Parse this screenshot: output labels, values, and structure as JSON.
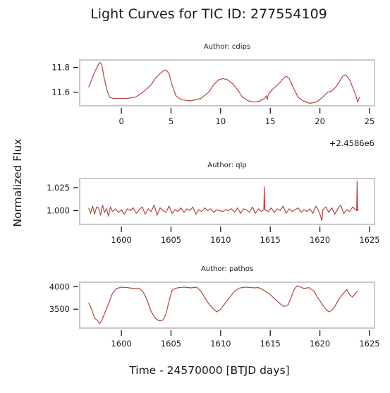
{
  "figure": {
    "title": "Light Curves for TIC ID: 277554109",
    "xlabel": "Time - 24570000 [BTJD days]",
    "ylabel": "Normalized Flux",
    "line_color": "#b5443f"
  },
  "chart_data": [
    {
      "type": "line",
      "title": "Author: cdips",
      "x_ticks": [
        0,
        5,
        10,
        15,
        20,
        25
      ],
      "x_offset_label": "+2.4586e6",
      "xlim": [
        -4.2,
        25.5
      ],
      "y_ticks": [
        11.6,
        11.8
      ],
      "ylim": [
        11.49,
        11.86
      ],
      "x": [
        -3.3,
        -3.0,
        -2.7,
        -2.4,
        -2.2,
        -2.0,
        -1.8,
        -1.5,
        -1.2,
        -0.8,
        -0.2,
        0.6,
        1.4,
        2.0,
        2.6,
        3.0,
        3.5,
        3.9,
        4.2,
        4.5,
        4.8,
        5.1,
        5.5,
        6.0,
        7.0,
        8.0,
        8.8,
        9.3,
        9.8,
        10.2,
        10.7,
        11.2,
        11.7,
        12.2,
        12.8,
        13.4,
        14.0,
        14.4,
        14.6,
        14.7,
        14.8,
        15.2,
        15.6,
        16.0,
        16.3,
        16.6,
        16.9,
        17.3,
        17.8,
        18.3,
        19.0,
        19.6,
        20.0,
        20.4,
        20.8,
        21.2,
        21.6,
        22.0,
        22.3,
        22.6,
        23.0,
        23.4,
        23.6,
        23.7,
        23.8,
        24.0
      ],
      "y": [
        11.64,
        11.7,
        11.76,
        11.81,
        11.84,
        11.83,
        11.74,
        11.63,
        11.56,
        11.55,
        11.55,
        11.55,
        11.56,
        11.59,
        11.63,
        11.66,
        11.72,
        11.75,
        11.77,
        11.78,
        11.75,
        11.66,
        11.57,
        11.54,
        11.53,
        11.55,
        11.6,
        11.66,
        11.7,
        11.71,
        11.7,
        11.67,
        11.62,
        11.56,
        11.53,
        11.52,
        11.53,
        11.55,
        11.57,
        11.54,
        11.58,
        11.62,
        11.65,
        11.68,
        11.71,
        11.73,
        11.71,
        11.64,
        11.56,
        11.53,
        11.51,
        11.52,
        11.54,
        11.57,
        11.6,
        11.61,
        11.64,
        11.69,
        11.73,
        11.74,
        11.7,
        11.62,
        11.58,
        11.55,
        11.52,
        11.56
      ]
    },
    {
      "type": "line",
      "title": "Author: qlp",
      "x_ticks": [
        1600,
        1605,
        1610,
        1615,
        1620,
        1625
      ],
      "xlim": [
        1595.8,
        1625.5
      ],
      "y_ticks": [
        1.0,
        1.025
      ],
      "y_tick_labels": [
        "1.000",
        "1.025"
      ],
      "ylim": [
        0.985,
        1.035
      ],
      "x": [
        1596.7,
        1596.9,
        1597.1,
        1597.3,
        1597.5,
        1597.7,
        1597.9,
        1598.1,
        1598.3,
        1598.5,
        1598.7,
        1598.9,
        1599.1,
        1599.4,
        1599.7,
        1600.0,
        1600.3,
        1600.6,
        1600.9,
        1601.2,
        1601.5,
        1601.8,
        1602.1,
        1602.4,
        1602.7,
        1603.0,
        1603.3,
        1603.6,
        1603.9,
        1604.2,
        1604.5,
        1604.8,
        1605.1,
        1605.4,
        1605.7,
        1606.0,
        1606.3,
        1606.6,
        1606.9,
        1607.2,
        1607.5,
        1607.8,
        1608.1,
        1608.4,
        1608.7,
        1609.0,
        1609.3,
        1609.6,
        1609.9,
        1610.2,
        1610.5,
        1610.8,
        1611.1,
        1611.4,
        1611.7,
        1612.0,
        1612.3,
        1612.6,
        1612.9,
        1613.2,
        1613.5,
        1613.8,
        1614.1,
        1614.35,
        1614.4,
        1614.45,
        1614.8,
        1615.1,
        1615.4,
        1615.7,
        1616.0,
        1616.3,
        1616.6,
        1616.9,
        1617.2,
        1617.5,
        1617.8,
        1618.1,
        1618.4,
        1618.7,
        1619.0,
        1619.3,
        1619.6,
        1619.9,
        1620.1,
        1620.2,
        1620.3,
        1620.6,
        1620.9,
        1621.2,
        1621.5,
        1621.8,
        1622.1,
        1622.4,
        1622.7,
        1623.0,
        1623.3,
        1623.6,
        1623.7,
        1623.75,
        1623.8,
        1623.9
      ],
      "y": [
        1.003,
        0.997,
        1.005,
        0.996,
        1.004,
        1.003,
        0.995,
        1.006,
        0.998,
        1.002,
        0.994,
        1.004,
        0.999,
        1.002,
        0.998,
        1.001,
        0.996,
        1.002,
        1.0,
        1.003,
        0.997,
        1.001,
        1.004,
        0.996,
        1.002,
        0.999,
        1.006,
        0.995,
        1.003,
        1.0,
        0.998,
        1.005,
        0.997,
        1.001,
        0.999,
        1.003,
        0.998,
        1.002,
        1.0,
        1.004,
        0.996,
        1.001,
        0.999,
        1.003,
        1.0,
        1.002,
        0.998,
        1.001,
        1.0,
        0.999,
        1.001,
        1.0,
        1.002,
        0.998,
        1.003,
        0.997,
        1.002,
        1.001,
        0.998,
        1.004,
        0.997,
        1.002,
        0.999,
        1.001,
        1.026,
        1.001,
        0.999,
        1.003,
        0.998,
        1.002,
        1.0,
        1.005,
        0.997,
        1.002,
        0.999,
        1.001,
        1.003,
        0.998,
        1.001,
        0.999,
        1.002,
        0.997,
        1.005,
        0.999,
        0.993,
        0.989,
        1.001,
        1.004,
        0.998,
        1.003,
        0.996,
        1.002,
        1.006,
        0.997,
        1.001,
        0.999,
        1.004,
        1.001,
        1.0,
        1.032,
        1.0,
        1.001
      ]
    },
    {
      "type": "line",
      "title": "Author: pathos",
      "x_ticks": [
        1600,
        1605,
        1610,
        1615,
        1620,
        1625
      ],
      "xlim": [
        1595.8,
        1625.5
      ],
      "y_ticks": [
        3500,
        4000
      ],
      "ylim": [
        3080,
        4100
      ],
      "x": [
        1596.7,
        1597.0,
        1597.3,
        1597.6,
        1597.8,
        1598.0,
        1598.3,
        1598.7,
        1599.1,
        1599.5,
        1600.0,
        1600.6,
        1601.2,
        1601.8,
        1602.2,
        1602.6,
        1603.0,
        1603.4,
        1603.8,
        1604.2,
        1604.5,
        1604.8,
        1605.1,
        1605.4,
        1605.8,
        1606.4,
        1607.0,
        1607.6,
        1608.0,
        1608.4,
        1608.8,
        1609.2,
        1609.6,
        1610.0,
        1610.4,
        1610.9,
        1611.4,
        1611.9,
        1612.4,
        1612.9,
        1613.4,
        1613.8,
        1614.2,
        1614.5,
        1614.7,
        1614.9,
        1615.2,
        1615.6,
        1616.0,
        1616.4,
        1616.8,
        1617.1,
        1617.4,
        1617.7,
        1618.0,
        1618.4,
        1618.9,
        1619.4,
        1619.8,
        1620.2,
        1620.6,
        1620.9,
        1621.2,
        1621.5,
        1621.8,
        1622.1,
        1622.4,
        1622.7,
        1623.0,
        1623.3,
        1623.6,
        1623.8
      ],
      "y": [
        3650,
        3500,
        3300,
        3250,
        3180,
        3240,
        3400,
        3620,
        3850,
        3960,
        3990,
        3980,
        3960,
        3970,
        3880,
        3700,
        3450,
        3300,
        3240,
        3260,
        3400,
        3680,
        3920,
        3960,
        3980,
        3990,
        3975,
        3990,
        3900,
        3760,
        3620,
        3520,
        3440,
        3500,
        3620,
        3760,
        3900,
        3970,
        3990,
        3985,
        3975,
        3980,
        3940,
        3900,
        3870,
        3850,
        3780,
        3700,
        3620,
        3560,
        3600,
        3760,
        3940,
        4020,
        4000,
        3960,
        3980,
        3900,
        3750,
        3620,
        3500,
        3440,
        3480,
        3560,
        3680,
        3780,
        3860,
        3940,
        3820,
        3770,
        3860,
        3900
      ]
    }
  ]
}
